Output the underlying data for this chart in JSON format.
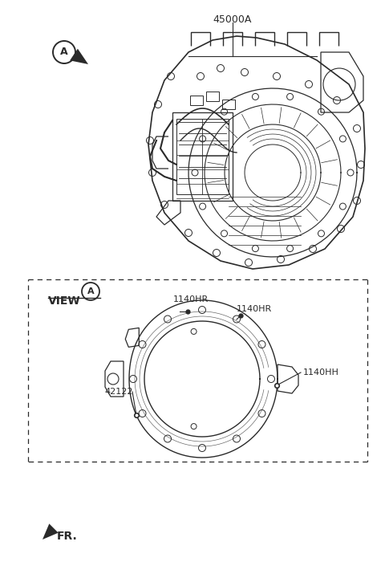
{
  "bg_color": "#ffffff",
  "line_color": "#2a2a2a",
  "label_45000A": "45000A",
  "label_A_circle": "A",
  "label_view": "VIEW",
  "label_1140HR_top": "1140HR",
  "label_1140HR_right": "1140HR",
  "label_1140HH": "1140HH",
  "label_42122": "42122",
  "label_FR": "FR.",
  "fig_w": 4.8,
  "fig_h": 7.15,
  "dpi": 100
}
